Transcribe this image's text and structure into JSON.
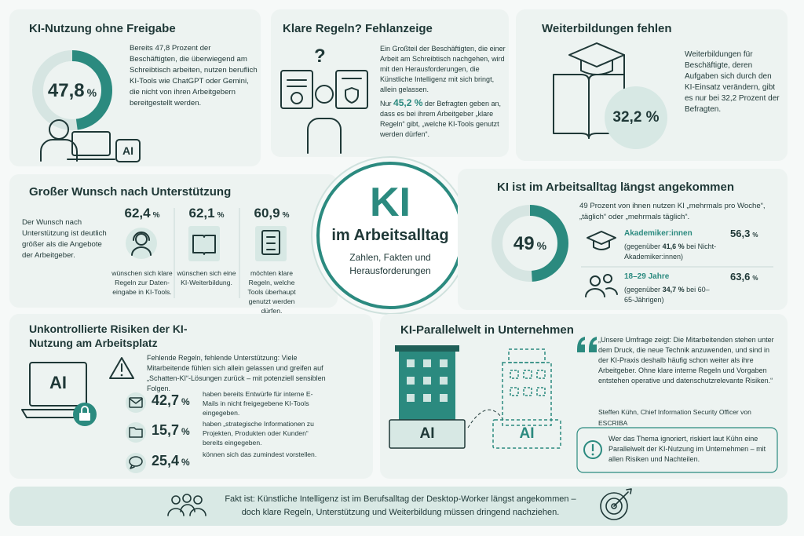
{
  "center": {
    "title": "KI",
    "subtitle": "im Arbeitsalltag",
    "tagline": "Zahlen, Fakten und Herausforderungen"
  },
  "panels": {
    "usage": {
      "title": "KI-Nutzung ohne Freigabe",
      "donut": {
        "value": 47.8,
        "label": "47,8",
        "unit": "%"
      },
      "text": "Bereits 47,8 Prozent der Beschäftigten, die überwiegend am Schreibtisch arbeiten, nutzen beruflich KI-Tools wie ChatGPT oder Gemini, die nicht von ihren Arbeitgebern bereitgestellt werden.",
      "icon_label": "AI"
    },
    "rules": {
      "title": "Klare Regeln? Fehlanzeige",
      "icon_mark": "?",
      "text": "Ein Großteil der Beschäftigten, die einer Arbeit am Schreibtisch nachgehen, wird mit den Herausforderungen, die Künstliche Intelligenz mit sich bringt, allein gelassen.",
      "text2_before": "Nur",
      "text2_value": "45,2 %",
      "text2_after": "der Befragten geben an, dass es bei ihrem Arbeitgeber „klare Regeln“ gibt, „welche KI-Tools genutzt werden dürfen“."
    },
    "training": {
      "title": "Weiterbildungen fehlen",
      "stat": "32,2 %",
      "text": "Weiterbildungen für Beschäftigte, deren Aufgaben sich durch den KI-Einsatz verändern, gibt es nur bei 32,2 Prozent der Befragten."
    },
    "support": {
      "title": "Großer Wunsch nach Unterstützung",
      "text": "Der Wunsch nach Unterstützung ist deutlich größer als die Angebote der Arbeitgeber.",
      "items": [
        {
          "value": "62,4",
          "unit": "%",
          "text": "wünschen sich klare Regeln zur Daten-eingabe in KI-Tools."
        },
        {
          "value": "62,1",
          "unit": "%",
          "text": "wünschen sich eine KI-Weiterbildung."
        },
        {
          "value": "60,9",
          "unit": "%",
          "text": "möchten klare Regeln, welche Tools überhaupt genutzt werden dürfen."
        }
      ]
    },
    "adoption": {
      "title": "KI ist im Arbeitsalltag längst angekommen",
      "donut": {
        "value": 49,
        "label": "49",
        "unit": "%"
      },
      "text": "49 Prozent von ihnen nutzen KI „mehrmals pro Woche“, „täglich“ oder „mehrmals täglich“.",
      "groups": [
        {
          "name": "Akademiker:innen",
          "value": "56,3",
          "unit": "%",
          "note_before": "(gegenüber",
          "note_value": "41,6 %",
          "note_after": "bei Nicht-Akademiker:innen)"
        },
        {
          "name": "18–29 Jahre",
          "value": "63,6",
          "unit": "%",
          "note_before": "(gegenüber",
          "note_value": "34,7 %",
          "note_after": "bei 60–65-Jährigen)"
        }
      ]
    },
    "risks": {
      "title": "Unkontrollierte Risiken der KI-Nutzung am Arbeitsplatz",
      "icon_label": "AI",
      "text": "Fehlende Regeln, fehlende Unterstützung: Viele Mitarbeitende fühlen sich allein gelassen und greifen auf „Schatten-KI“-Lösungen zurück – mit potenziell sensiblen Folgen.",
      "items": [
        {
          "value": "42,7",
          "unit": "%",
          "text": "haben bereits Entwürfe für interne E-Mails in nicht freigegebene KI-Tools eingegeben."
        },
        {
          "value": "15,7",
          "unit": "%",
          "text": "haben „strategische Informationen zu Projekten, Produkten oder Kunden“ bereits eingegeben."
        },
        {
          "value": "25,4",
          "unit": "%",
          "text": "können sich das zumindest vorstellen."
        }
      ]
    },
    "parallel": {
      "title": "KI-Parallelwelt in Unternehmen",
      "building_labels": [
        "AI",
        "AI"
      ],
      "quote": "„Unsere Umfrage zeigt: Die Mitarbeitenden stehen unter dem Druck, die neue Technik anzuwenden, und sind in der KI-Praxis deshalb häufig schon weiter als ihre Arbeitgeber. Ohne klare interne Regeln und Vorgaben entstehen operative und datenschutzrelevante Risiken.“",
      "author": "Steffen Kühn, Chief Information Security Officer von ESCRIBA",
      "note": "Wer das Thema ignoriert, riskiert laut Kühn eine Parallelwelt der KI-Nutzung im Unternehmen – mit allen Risiken und Nachteilen."
    }
  },
  "footer": {
    "text": "Fakt ist: Künstliche Intelligenz ist im Berufsalltag der Desktop-Worker längst angekommen – doch klare Regeln, Unterstützung und Weiterbildung müssen dringend nachziehen."
  }
}
